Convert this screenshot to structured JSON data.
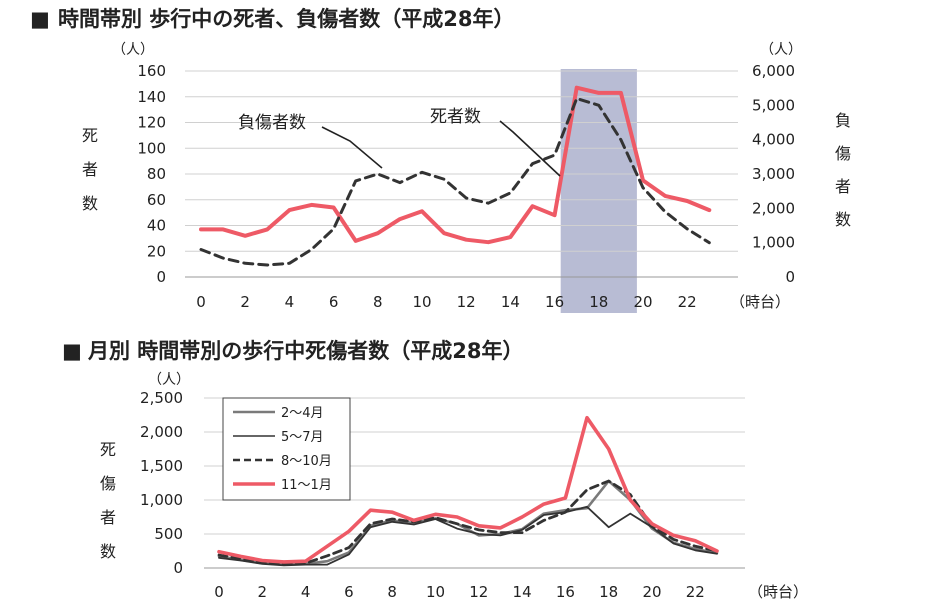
{
  "chart_data": [
    {
      "type": "line",
      "title": "時間帯別 歩行中の死者、負傷者数（平成28年）",
      "title_marker": "■",
      "xlabel": "（時台）",
      "x": [
        0,
        1,
        2,
        3,
        4,
        5,
        6,
        7,
        8,
        9,
        10,
        11,
        12,
        13,
        14,
        15,
        16,
        17,
        18,
        19,
        20,
        21,
        22,
        23
      ],
      "x_ticks": [
        "0",
        "2",
        "4",
        "6",
        "8",
        "10",
        "12",
        "14",
        "16",
        "18",
        "20",
        "22"
      ],
      "y_left": {
        "label": [
          "死",
          "者",
          "数"
        ],
        "unit": "（人）",
        "range": [
          0,
          160
        ],
        "ticks": [
          "0",
          "20",
          "40",
          "60",
          "80",
          "100",
          "120",
          "140",
          "160"
        ]
      },
      "y_right": {
        "label": [
          "負",
          "傷",
          "者",
          "数"
        ],
        "unit": "（人）",
        "range": [
          0,
          6000
        ],
        "ticks": [
          "0",
          "1,000",
          "2,000",
          "3,000",
          "4,000",
          "5,000",
          "6,000"
        ]
      },
      "highlight_range": [
        17,
        19
      ],
      "grid": "horizontal",
      "series": [
        {
          "name": "死者数",
          "axis": "left",
          "color": "#ee5a66",
          "style": "solid",
          "values": [
            37,
            37,
            32,
            37,
            52,
            56,
            54,
            28,
            34,
            45,
            51,
            34,
            29,
            27,
            31,
            55,
            48,
            147,
            143,
            143,
            75,
            63,
            59,
            52
          ]
        },
        {
          "name": "負傷者数",
          "axis": "right",
          "color": "#333333",
          "style": "dashed",
          "values": [
            800,
            550,
            400,
            350,
            400,
            800,
            1400,
            2800,
            3000,
            2750,
            3050,
            2850,
            2300,
            2150,
            2450,
            3300,
            3550,
            5200,
            5000,
            4000,
            2600,
            1900,
            1400,
            1000
          ]
        }
      ]
    },
    {
      "type": "line",
      "title": "月別 時間帯別の歩行中死傷者数（平成28年）",
      "title_marker": "■",
      "xlabel": "（時台）",
      "x": [
        0,
        1,
        2,
        3,
        4,
        5,
        6,
        7,
        8,
        9,
        10,
        11,
        12,
        13,
        14,
        15,
        16,
        17,
        18,
        19,
        20,
        21,
        22,
        23
      ],
      "x_ticks": [
        "0",
        "2",
        "4",
        "6",
        "8",
        "10",
        "12",
        "14",
        "16",
        "18",
        "20",
        "22"
      ],
      "y": {
        "label": [
          "死",
          "傷",
          "者",
          "数"
        ],
        "unit": "（人）",
        "range": [
          0,
          2500
        ],
        "ticks": [
          "0",
          "500",
          "1,000",
          "1,500",
          "2,000",
          "2,500"
        ]
      },
      "grid": "horizontal",
      "legend_position": "top-left",
      "series": [
        {
          "name": "2～4月",
          "color": "#7a7a7a",
          "style": "solid",
          "values": [
            170,
            120,
            70,
            50,
            60,
            100,
            230,
            620,
            700,
            660,
            730,
            650,
            480,
            500,
            570,
            800,
            850,
            880,
            1280,
            1000,
            580,
            370,
            280,
            220
          ]
        },
        {
          "name": "5～7月",
          "color": "#333333",
          "style": "solid",
          "values": [
            150,
            110,
            60,
            40,
            50,
            50,
            200,
            600,
            680,
            640,
            720,
            580,
            500,
            480,
            560,
            780,
            820,
            900,
            600,
            800,
            600,
            360,
            260,
            210
          ]
        },
        {
          "name": "8～10月",
          "color": "#333333",
          "style": "dashed",
          "values": [
            190,
            140,
            80,
            60,
            70,
            180,
            300,
            650,
            720,
            680,
            740,
            650,
            560,
            520,
            520,
            700,
            820,
            1150,
            1280,
            1080,
            620,
            420,
            320,
            250
          ]
        },
        {
          "name": "11～1月",
          "color": "#ee5a66",
          "style": "solid",
          "values": [
            240,
            170,
            110,
            90,
            100,
            320,
            540,
            850,
            820,
            700,
            790,
            750,
            620,
            590,
            750,
            940,
            1030,
            2210,
            1750,
            1000,
            650,
            480,
            400,
            250
          ]
        }
      ]
    }
  ],
  "annotations": {
    "injured_label": "負傷者数",
    "deaths_label": "死者数"
  }
}
